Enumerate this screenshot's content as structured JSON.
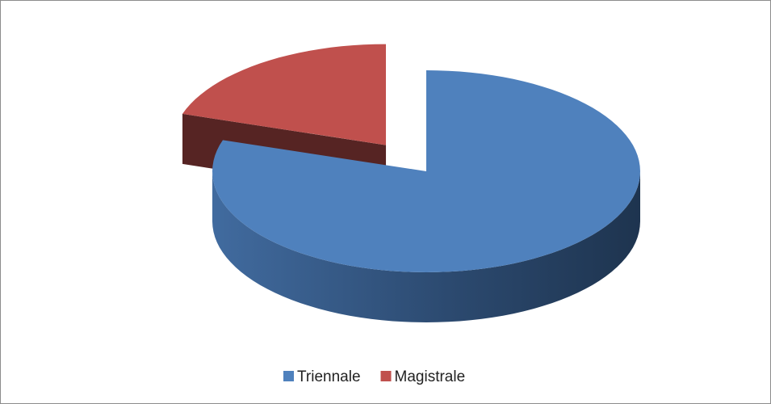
{
  "chart_data": {
    "type": "pie3d",
    "categories": [
      "Triennale",
      "Magistrale"
    ],
    "values": [
      80,
      20
    ],
    "colors": [
      "#4f81bd",
      "#c0504d"
    ],
    "legend": "bottom"
  }
}
